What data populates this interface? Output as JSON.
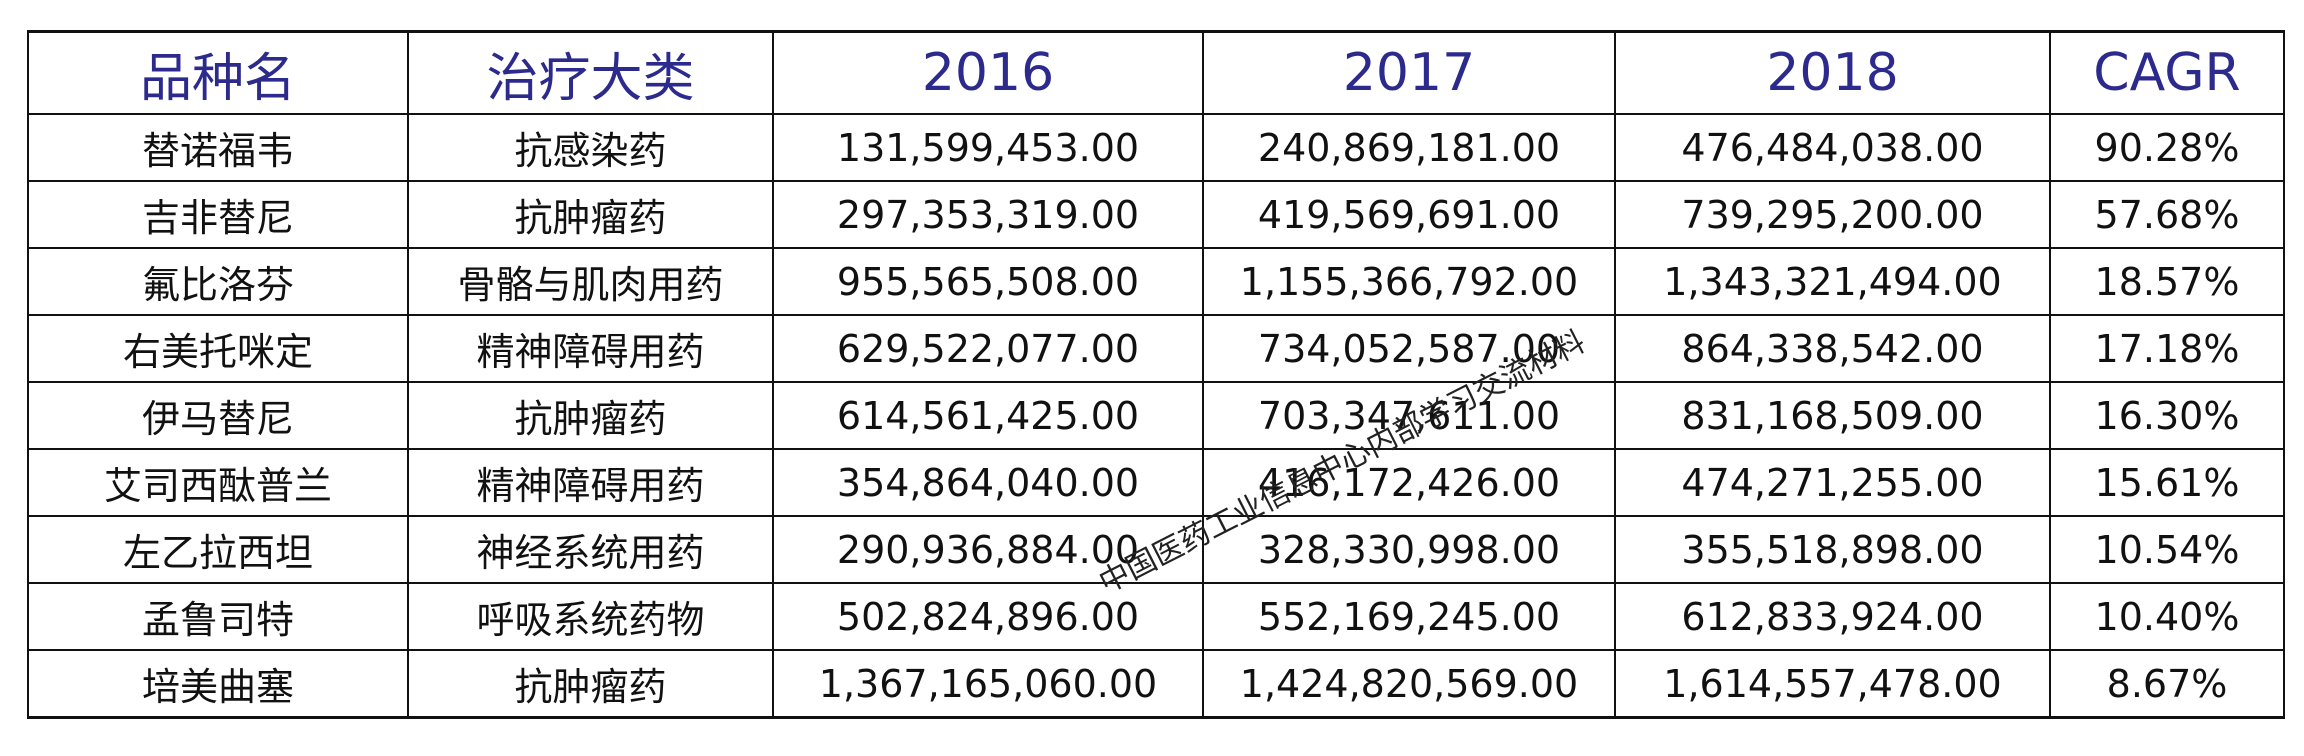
{
  "headers": [
    "品种名",
    "治疗大类",
    "2016",
    "2017",
    "2018",
    "CAGR"
  ],
  "rows": [
    [
      "替诺福韦",
      "抗感染药",
      "131,599,453.00",
      "240,869,181.00",
      "476,484,038.00",
      "90.28%"
    ],
    [
      "吉非替尼",
      "抗肿瘤药",
      "297,353,319.00",
      "419,569,691.00",
      "739,295,200.00",
      "57.68%"
    ],
    [
      "氟比洛芬",
      "骨骼与肌肉用药",
      "955,565,508.00",
      "1,155,366,792.00",
      "1,343,321,494.00",
      "18.57%"
    ],
    [
      "右美托咪定",
      "精神障碍用药",
      "629,522,077.00",
      "734,052,587.00",
      "864,338,542.00",
      "17.18%"
    ],
    [
      "伊马替尼",
      "抗肿瘤药",
      "614,561,425.00",
      "703,347,611.00",
      "831,168,509.00",
      "16.30%"
    ],
    [
      "艾司西酞普兰",
      "精神障碍用药",
      "354,864,040.00",
      "416,172,426.00",
      "474,271,255.00",
      "15.61%"
    ],
    [
      "左乙拉西坦",
      "神经系统用药",
      "290,936,884.00",
      "328,330,998.00",
      "355,518,898.00",
      "10.54%"
    ],
    [
      "孟鲁司特",
      "呼吸系统药物",
      "502,824,896.00",
      "552,169,245.00",
      "612,833,924.00",
      "10.40%"
    ],
    [
      "培美曲塞",
      "抗肿瘤药",
      "1,367,165,060.00",
      "1,424,820,569.00",
      "1,614,557,478.00",
      "8.67%"
    ]
  ],
  "watermark": "中国医药工业信息中心内部学习交流材料",
  "colors": {
    "header_text": "#2c2a8c",
    "cell_text": "#111111",
    "border": "#111111"
  }
}
